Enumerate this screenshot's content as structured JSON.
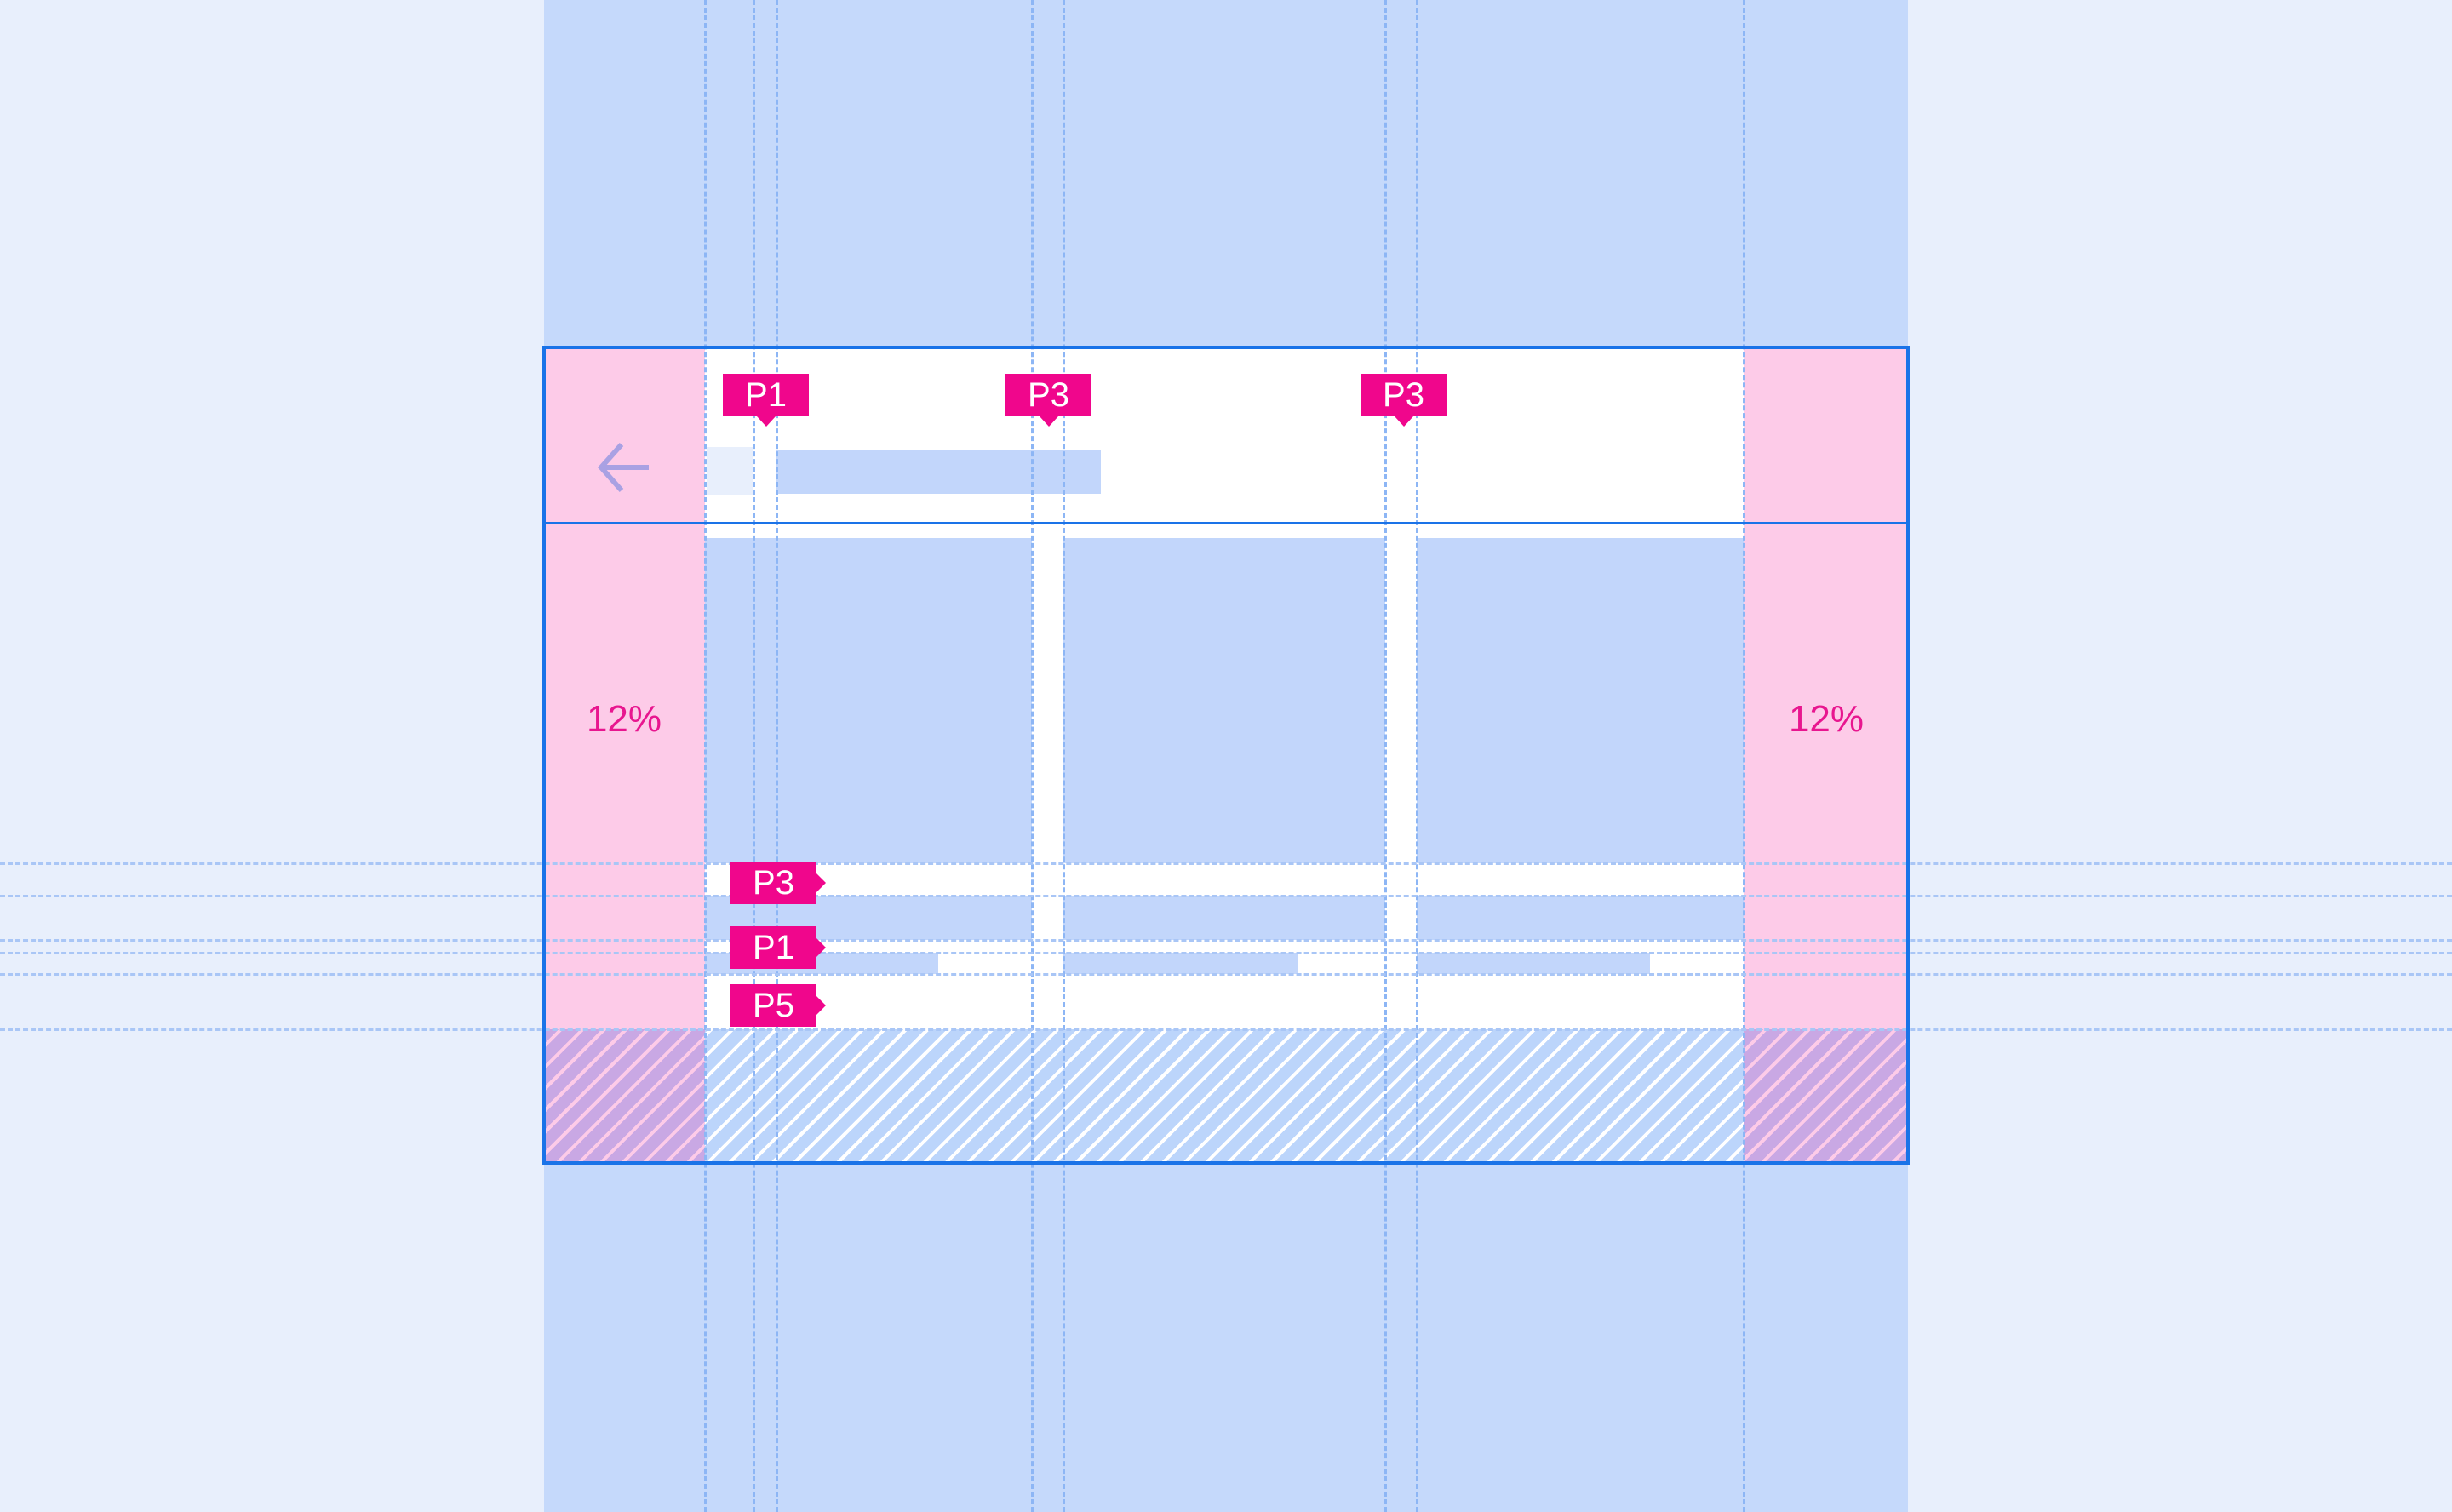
{
  "margin_labels": {
    "left": "12%",
    "right": "12%"
  },
  "top_badges": [
    "P1",
    "P3",
    "P3"
  ],
  "side_badges": [
    "P3",
    "P1",
    "P5"
  ],
  "icons": {
    "back": "arrow-left-icon"
  },
  "colors": {
    "accent": "#f0068c",
    "frame": "#1a73e8",
    "margin": "#fdcbe8",
    "content": "#c2d6fb",
    "background": "#e8effc"
  }
}
